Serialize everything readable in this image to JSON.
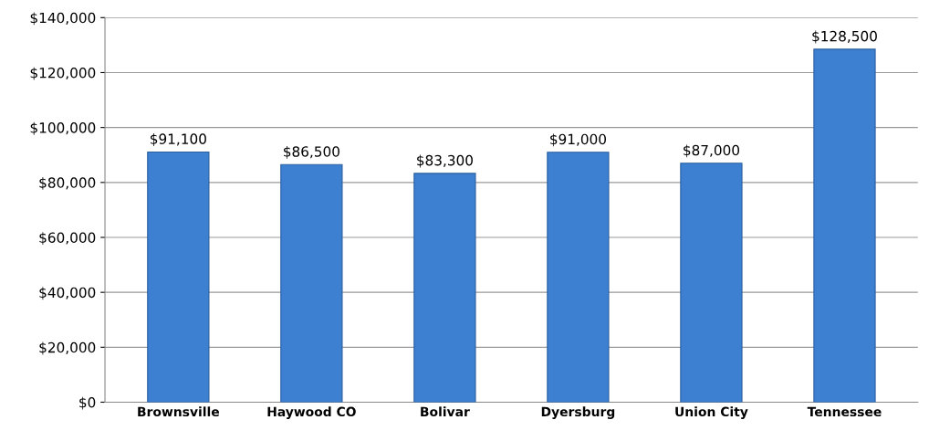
{
  "chart_data": {
    "type": "bar",
    "categories": [
      "Brownsville",
      "Haywood CO",
      "Bolivar",
      "Dyersburg",
      "Union City",
      "Tennessee"
    ],
    "values": [
      91100,
      86500,
      83300,
      91000,
      87000,
      128500
    ],
    "value_labels": [
      "$91,100",
      "$86,500",
      "$83,300",
      "$91,000",
      "$87,000",
      "$128,500"
    ],
    "color": "#3d7fd1",
    "ylim": [
      0,
      140000
    ],
    "yticks": [
      {
        "value": 0,
        "label": "$0"
      },
      {
        "value": 20000,
        "label": "$20,000"
      },
      {
        "value": 40000,
        "label": "$40,000"
      },
      {
        "value": 60000,
        "label": "$60,000"
      },
      {
        "value": 80000,
        "label": "$80,000"
      },
      {
        "value": 100000,
        "label": "$100,000"
      },
      {
        "value": 120000,
        "label": "$120,000"
      },
      {
        "value": 140000,
        "label": "$140,000"
      }
    ],
    "grid": "y"
  }
}
